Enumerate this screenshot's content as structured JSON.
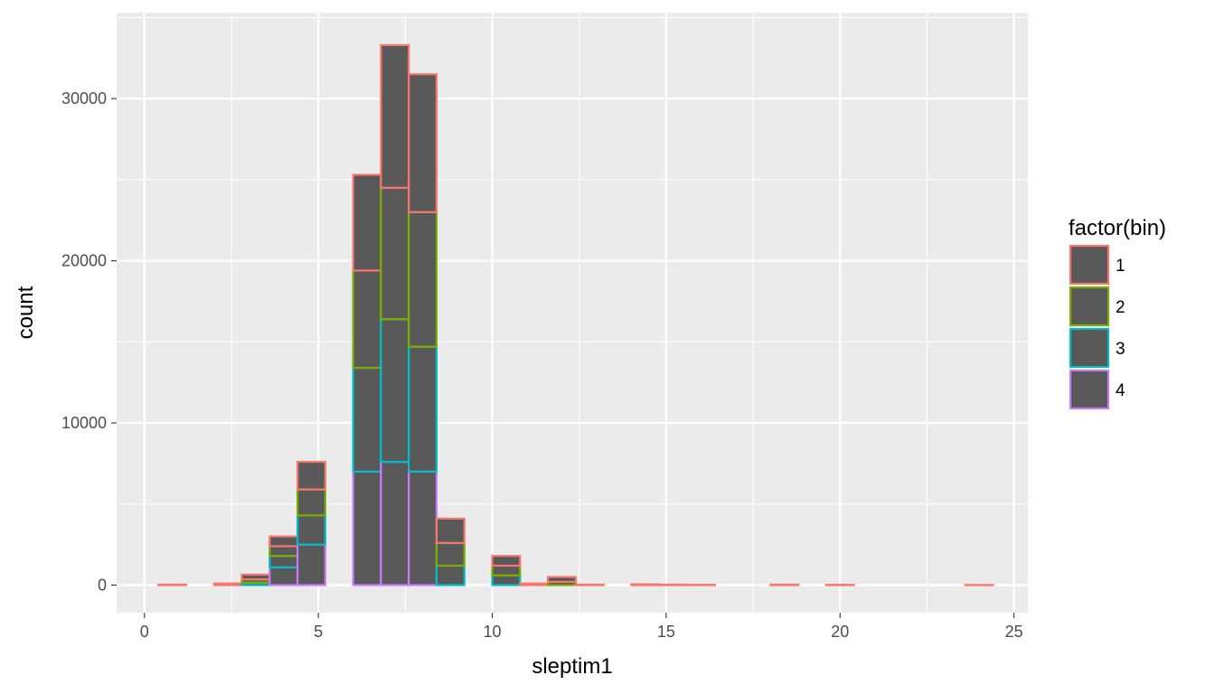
{
  "chart_data": {
    "type": "bar",
    "stacked": true,
    "xlabel": "sleptim1",
    "ylabel": "count",
    "xlim": [
      -0.8,
      25.4
    ],
    "ylim": [
      -1700,
      35300
    ],
    "xticks": [
      0,
      5,
      10,
      15,
      20,
      25
    ],
    "yticks": [
      0,
      10000,
      20000,
      30000
    ],
    "bin_width": 0.8,
    "bin_centers": [
      0.8,
      1.6,
      2.4,
      3.2,
      4.0,
      4.8,
      5.6,
      6.4,
      7.2,
      8.0,
      8.8,
      9.6,
      10.4,
      11.2,
      12.0,
      12.8,
      13.6,
      14.4,
      15.2,
      16.0,
      16.8,
      17.6,
      18.4,
      19.2,
      20.0,
      20.8,
      21.6,
      22.4,
      23.2,
      24.0
    ],
    "series": [
      {
        "name": "4",
        "values": [
          0,
          0,
          0,
          0,
          1100,
          2500,
          0,
          7000,
          7600,
          7000,
          0,
          0,
          0,
          0,
          0,
          0,
          0,
          0,
          0,
          0,
          0,
          0,
          0,
          0,
          0,
          0,
          0,
          0,
          0,
          0
        ]
      },
      {
        "name": "3",
        "values": [
          0,
          0,
          0,
          150,
          700,
          1800,
          0,
          6400,
          8800,
          7700,
          1200,
          0,
          600,
          0,
          0,
          0,
          0,
          0,
          0,
          0,
          0,
          0,
          0,
          0,
          0,
          0,
          0,
          0,
          0,
          0
        ]
      },
      {
        "name": "2",
        "values": [
          0,
          0,
          0,
          200,
          600,
          1600,
          0,
          6000,
          8100,
          8300,
          1400,
          0,
          600,
          0,
          200,
          0,
          0,
          0,
          0,
          0,
          0,
          0,
          0,
          0,
          0,
          0,
          0,
          0,
          0,
          0
        ]
      },
      {
        "name": "1",
        "values": [
          30,
          0,
          100,
          300,
          600,
          1700,
          0,
          5900,
          8800,
          8500,
          1500,
          0,
          600,
          100,
          300,
          30,
          0,
          50,
          30,
          20,
          0,
          0,
          30,
          0,
          20,
          0,
          0,
          0,
          0,
          10
        ]
      }
    ],
    "legend": {
      "title": "factor(bin)",
      "placement": "right"
    },
    "grid": true,
    "colors": {
      "1": "#F8766D",
      "2": "#7CAE00",
      "3": "#00BFC4",
      "4": "#C77CFF",
      "bar_fill": "#595959",
      "panel_bg": "#EBEBEB",
      "grid_line": "#FFFFFF",
      "tick_text": "#4D4D4D"
    }
  }
}
